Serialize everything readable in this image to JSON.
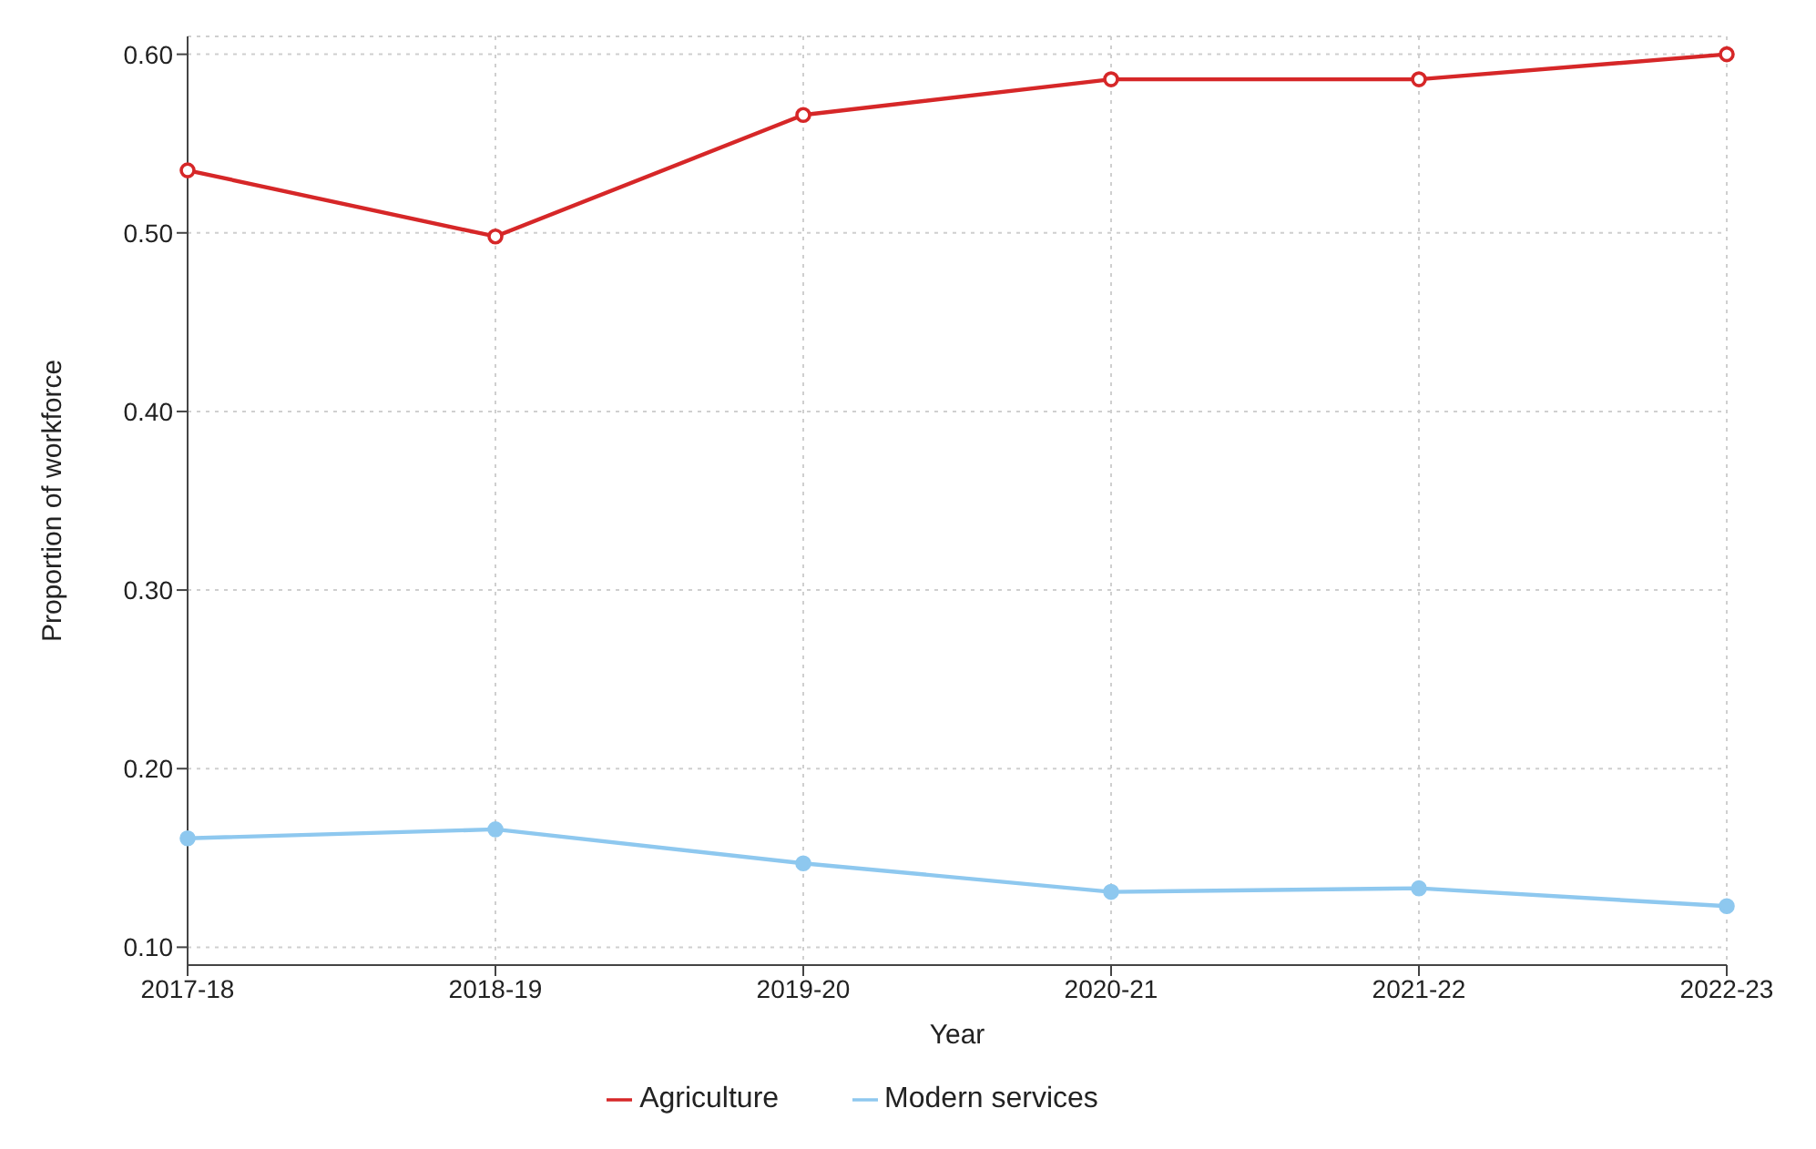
{
  "chart_data": {
    "type": "line",
    "xlabel": "Year",
    "ylabel": "Proportion of workforce",
    "categories": [
      "2017-18",
      "2018-19",
      "2019-20",
      "2020-21",
      "2021-22",
      "2022-23"
    ],
    "series": [
      {
        "name": "Agriculture",
        "color": "#d62728",
        "marker": "circle",
        "values": [
          0.535,
          0.498,
          0.566,
          0.586,
          0.586,
          0.6
        ]
      },
      {
        "name": "Modern services",
        "color": "#8ec8ef",
        "marker": "circle",
        "values": [
          0.161,
          0.166,
          0.147,
          0.131,
          0.133,
          0.123
        ]
      }
    ],
    "ylim": [
      0.09,
      0.61
    ],
    "yticks": [
      {
        "value": 0.1,
        "label": "0.10"
      },
      {
        "value": 0.2,
        "label": "0.20"
      },
      {
        "value": 0.3,
        "label": "0.30"
      },
      {
        "value": 0.4,
        "label": "0.40"
      },
      {
        "value": 0.5,
        "label": "0.50"
      },
      {
        "value": 0.6,
        "label": "0.60"
      }
    ],
    "grid": true,
    "legend": "bottom",
    "line_style": "solid"
  }
}
